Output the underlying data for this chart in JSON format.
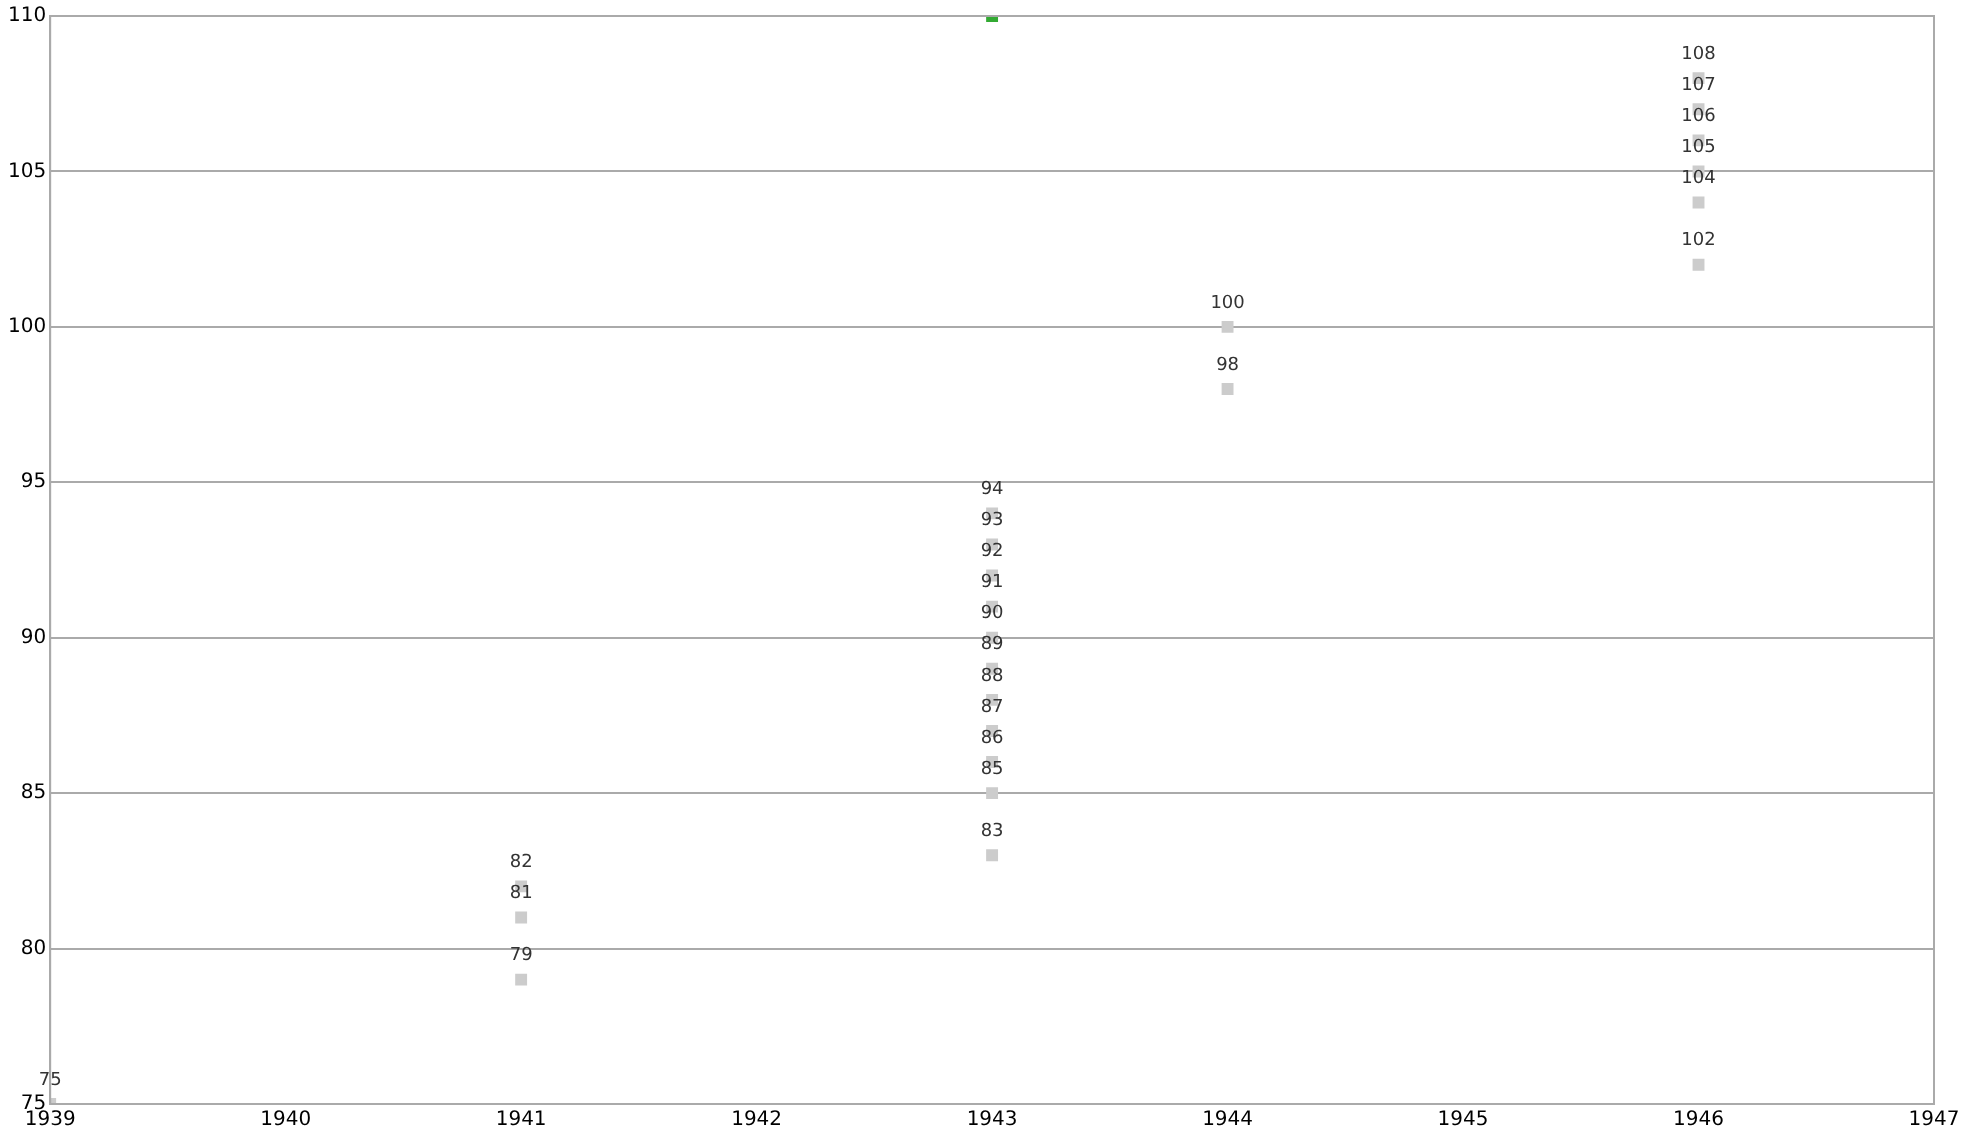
{
  "chart_data": {
    "type": "scatter",
    "series": [
      {
        "x": [
          1939,
          1941,
          1941,
          1941,
          1943,
          1943,
          1943,
          1943,
          1943,
          1943,
          1943,
          1943,
          1943,
          1943,
          1943,
          1944,
          1944,
          1946,
          1946,
          1946,
          1946,
          1946,
          1946,
          1943
        ],
        "values": [
          75,
          79,
          81,
          82,
          83,
          85,
          86,
          87,
          88,
          89,
          90,
          91,
          92,
          93,
          94,
          98,
          100,
          102,
          104,
          105,
          106,
          107,
          108,
          110
        ],
        "colors": [
          "#cccccc",
          "#cccccc",
          "#cccccc",
          "#cccccc",
          "#cccccc",
          "#cccccc",
          "#cccccc",
          "#cccccc",
          "#cccccc",
          "#cccccc",
          "#cccccc",
          "#cccccc",
          "#cccccc",
          "#cccccc",
          "#cccccc",
          "#cccccc",
          "#cccccc",
          "#cccccc",
          "#cccccc",
          "#cccccc",
          "#cccccc",
          "#cccccc",
          "#cccccc",
          "#33aa33"
        ],
        "value_labels": [
          "75",
          "79",
          "81",
          "82",
          "83",
          "85",
          "86",
          "87",
          "88",
          "89",
          "90",
          "91",
          "92",
          "93",
          "94",
          "98",
          "100",
          "102",
          "104",
          "105",
          "106",
          "107",
          "108",
          null
        ]
      }
    ],
    "xlim": [
      1939,
      1947
    ],
    "xticks": [
      1939,
      1940,
      1941,
      1942,
      1943,
      1944,
      1945,
      1946,
      1947
    ],
    "ylim": [
      75,
      110
    ],
    "yticks": [
      75,
      80,
      85,
      90,
      95,
      100,
      105,
      110
    ],
    "grid": "y",
    "marker": "square",
    "legend": false
  }
}
